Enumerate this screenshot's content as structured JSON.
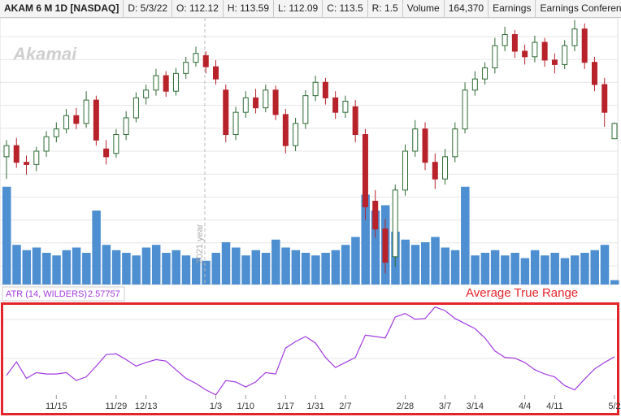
{
  "header": {
    "symbol": "AKAM 6 M 1D [NASDAQ]",
    "date": "D: 5/3/22",
    "open": "O: 112.12",
    "high": "H: 113.59",
    "low": "L: 112.09",
    "close": "C: 113.5",
    "range": "R: 1.5",
    "volume_label": "Volume",
    "volume": "164,370",
    "earnings": "Earnings",
    "earnings_call": "Earnings Conference Call"
  },
  "watermark": "Akamai",
  "year_marker": "2021 year",
  "chart_data": [
    {
      "type": "candlestick",
      "ylim": [
        99,
        123
      ],
      "up_color": "#2e6b34",
      "down_color": "#b8232b",
      "open": [
        110.5,
        111.5,
        110.0,
        109.8,
        111.0,
        112.3,
        113.0,
        114.2,
        113.5,
        115.6,
        111.2,
        110.8,
        112.5,
        114.0,
        115.8,
        116.5,
        117.8,
        116.4,
        118.0,
        119.0,
        119.6,
        118.6,
        116.5,
        112.5,
        114.5,
        115.8,
        114.9,
        116.5,
        114.3,
        111.5,
        113.5,
        116.0,
        117.2,
        115.8,
        114.5,
        115.0,
        112.5,
        106.5,
        104.0,
        101.5,
        107.5,
        111.0,
        113.0,
        110.0,
        108.5,
        110.5,
        113.0,
        116.5,
        117.5,
        118.5,
        120.5,
        121.5,
        120.0,
        119.5,
        120.8,
        119.2,
        118.8,
        120.5,
        122.0,
        119.0,
        117.0,
        112.12
      ],
      "high": [
        112.0,
        112.2,
        110.6,
        111.4,
        112.8,
        113.6,
        114.8,
        114.9,
        116.4,
        116.0,
        112.0,
        113.0,
        114.6,
        116.3,
        117.0,
        118.4,
        118.2,
        118.5,
        119.5,
        120.4,
        120.0,
        119.2,
        117.0,
        115.0,
        116.4,
        116.6,
        117.0,
        116.9,
        114.8,
        114.0,
        116.5,
        117.8,
        117.6,
        116.4,
        116.0,
        115.6,
        113.0,
        107.5,
        104.9,
        108.0,
        111.6,
        113.8,
        113.6,
        110.8,
        111.2,
        113.6,
        117.2,
        118.2,
        119.0,
        121.2,
        122.2,
        121.9,
        120.6,
        121.4,
        121.2,
        119.8,
        121.0,
        122.8,
        122.5,
        119.5,
        117.6,
        113.59
      ],
      "low": [
        108.5,
        109.5,
        108.9,
        109.2,
        110.5,
        111.8,
        112.6,
        113.0,
        113.1,
        111.5,
        109.8,
        110.4,
        112.0,
        113.6,
        115.2,
        116.0,
        115.9,
        116.0,
        117.5,
        118.6,
        118.0,
        117.0,
        111.8,
        112.0,
        114.0,
        114.4,
        114.5,
        113.8,
        110.8,
        111.0,
        113.0,
        115.5,
        115.2,
        113.9,
        114.0,
        111.8,
        104.8,
        103.2,
        100.0,
        100.6,
        107.0,
        110.5,
        109.3,
        107.6,
        108.0,
        110.0,
        112.6,
        116.0,
        117.0,
        118.0,
        120.0,
        119.4,
        118.8,
        119.0,
        118.6,
        118.0,
        118.4,
        120.0,
        118.4,
        116.4,
        113.2,
        112.09
      ],
      "close": [
        111.5,
        110.0,
        109.8,
        111.0,
        112.3,
        113.0,
        114.2,
        113.5,
        115.6,
        112.0,
        110.5,
        112.5,
        114.0,
        115.8,
        116.5,
        117.8,
        116.4,
        118.0,
        119.0,
        119.8,
        118.6,
        117.5,
        112.5,
        114.5,
        115.8,
        114.9,
        116.5,
        114.3,
        111.5,
        113.5,
        116.0,
        117.2,
        115.8,
        114.5,
        115.5,
        112.5,
        106.0,
        104.0,
        101.0,
        107.5,
        111.0,
        113.0,
        110.0,
        108.5,
        110.5,
        113.0,
        116.5,
        117.5,
        118.5,
        120.5,
        121.5,
        120.0,
        119.5,
        120.8,
        119.2,
        118.8,
        120.5,
        122.0,
        119.0,
        117.0,
        114.5,
        113.5
      ],
      "volume": [
        3700000,
        1500000,
        1300000,
        1400000,
        1200000,
        1100000,
        1300000,
        1400000,
        1200000,
        2800000,
        1500000,
        1300000,
        1200000,
        1100000,
        1400000,
        1500000,
        1200000,
        1300000,
        1100000,
        1000000,
        900000,
        1200000,
        1600000,
        1400000,
        1100000,
        1300000,
        1200000,
        1700000,
        1400000,
        1300000,
        1200000,
        1100000,
        1200000,
        1300000,
        1500000,
        1800000,
        3400000,
        2800000,
        3000000,
        2000000,
        1700000,
        1500000,
        1600000,
        1800000,
        1400000,
        1300000,
        3700000,
        1100000,
        1200000,
        1300000,
        1100000,
        1200000,
        1000000,
        1300000,
        1100000,
        1200000,
        1000000,
        1100000,
        1200000,
        1300000,
        1500000,
        164370
      ],
      "volume_ylim": [
        0,
        4000000
      ],
      "volume_color": "#4d8fd1"
    },
    {
      "type": "line",
      "ylim": [
        1.8,
        3.3
      ],
      "annotation": "Average True Range",
      "value_label": "2.57757",
      "categories": [
        null,
        null,
        null,
        null,
        null,
        "11/15",
        null,
        null,
        null,
        null,
        null,
        "11/29",
        null,
        null,
        "12/13",
        null,
        null,
        null,
        null,
        null,
        null,
        "1/3",
        null,
        null,
        "1/10",
        null,
        null,
        null,
        "1/17",
        null,
        null,
        "1/31",
        null,
        null,
        "2/7",
        null,
        null,
        null,
        null,
        null,
        "2/28",
        null,
        null,
        null,
        "3/7",
        null,
        null,
        "3/14",
        null,
        null,
        null,
        null,
        "4/4",
        null,
        null,
        "4/11",
        null,
        null,
        null,
        null,
        null,
        "5/2"
      ],
      "series": [
        {
          "name": "ATR (14, WILDERS)",
          "color": "#a23be0",
          "values": [
            2.32,
            2.51,
            2.28,
            2.36,
            2.34,
            2.34,
            2.36,
            2.25,
            2.3,
            2.45,
            2.61,
            2.62,
            2.54,
            2.45,
            2.5,
            2.54,
            2.52,
            2.4,
            2.28,
            2.21,
            2.12,
            2.05,
            2.25,
            2.23,
            2.16,
            2.23,
            2.36,
            2.34,
            2.7,
            2.79,
            2.86,
            2.77,
            2.57,
            2.43,
            2.5,
            2.57,
            2.88,
            2.86,
            2.84,
            3.13,
            3.18,
            3.1,
            3.11,
            3.27,
            3.22,
            3.11,
            3.04,
            2.97,
            2.84,
            2.66,
            2.57,
            2.56,
            2.5,
            2.4,
            2.34,
            2.3,
            2.18,
            2.12,
            2.27,
            2.41,
            2.5,
            2.58
          ]
        }
      ]
    }
  ]
}
